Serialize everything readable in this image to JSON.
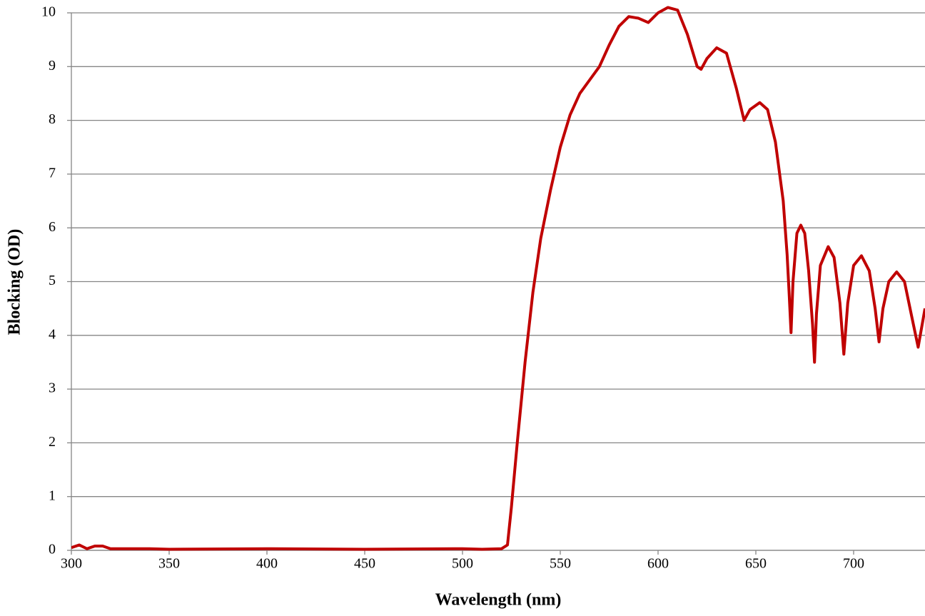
{
  "chart_data": {
    "type": "line",
    "x_label": "Wavelength (nm)",
    "y_label": "Blocking (OD)",
    "color": "#c00000",
    "grid": true,
    "xlim": [
      300,
      736.5
    ],
    "xticks": [
      300,
      350,
      400,
      450,
      500,
      550,
      600,
      650,
      700
    ],
    "ylim": [
      0,
      10
    ],
    "yticks": [
      0,
      1,
      2,
      3,
      4,
      5,
      6,
      7,
      8,
      9,
      10
    ],
    "x": [
      300,
      304,
      308,
      312,
      316,
      320,
      330,
      340,
      350,
      400,
      450,
      500,
      510,
      520,
      523,
      525,
      528,
      532,
      536,
      540,
      545,
      550,
      555,
      560,
      565,
      570,
      575,
      580,
      585,
      590,
      595,
      600,
      605,
      610,
      615,
      620,
      622,
      625,
      630,
      635,
      640,
      644,
      647,
      652,
      656,
      660,
      664,
      666,
      667,
      668,
      669,
      671,
      673,
      675,
      677,
      679,
      680,
      681,
      683,
      687,
      690,
      693,
      695,
      697,
      700,
      704,
      708,
      711,
      713,
      715,
      718,
      722,
      726,
      730,
      733,
      736.5
    ],
    "values": [
      0.05,
      0.1,
      0.03,
      0.08,
      0.08,
      0.03,
      0.03,
      0.03,
      0.02,
      0.03,
      0.02,
      0.03,
      0.02,
      0.03,
      0.1,
      0.8,
      2.0,
      3.5,
      4.8,
      5.8,
      6.7,
      7.5,
      8.1,
      8.5,
      8.75,
      9.0,
      9.4,
      9.75,
      9.93,
      9.9,
      9.82,
      10.0,
      10.1,
      10.05,
      9.6,
      9.0,
      8.95,
      9.15,
      9.35,
      9.25,
      8.6,
      8.0,
      8.2,
      8.33,
      8.2,
      7.6,
      6.5,
      5.5,
      4.8,
      4.05,
      5.0,
      5.9,
      6.05,
      5.9,
      5.2,
      4.2,
      3.5,
      4.4,
      5.3,
      5.65,
      5.45,
      4.6,
      3.65,
      4.6,
      5.3,
      5.48,
      5.2,
      4.5,
      3.88,
      4.5,
      5.0,
      5.18,
      5.0,
      4.3,
      3.78,
      4.5
    ]
  }
}
